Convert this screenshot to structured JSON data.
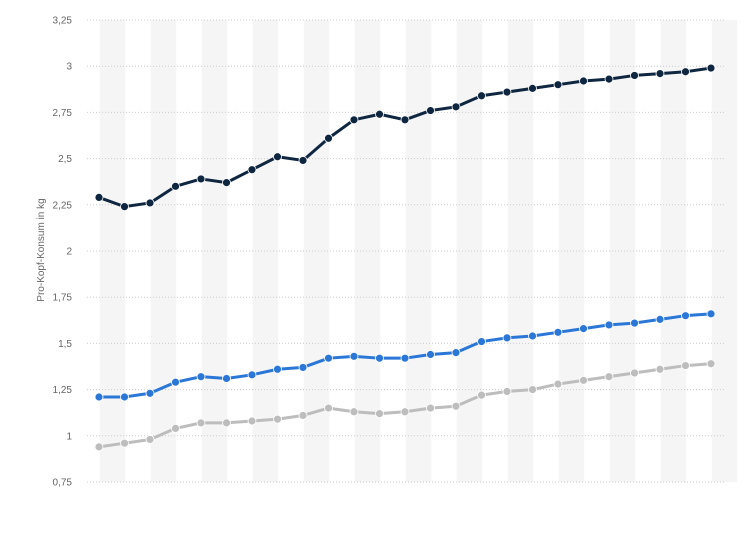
{
  "chart_data": {
    "type": "line",
    "ylabel": "Pro-Kopf-Konsum in kg",
    "ylim": [
      0.75,
      3.25
    ],
    "y_ticks": [
      "0,75",
      "1",
      "1,25",
      "1,5",
      "1,75",
      "2",
      "2,25",
      "2,5",
      "2,75",
      "3",
      "3,25"
    ],
    "y_tick_values": [
      0.75,
      1.0,
      1.25,
      1.5,
      1.75,
      2.0,
      2.25,
      2.5,
      2.75,
      3.0,
      3.25
    ],
    "grid": true,
    "legend": "none",
    "x_count": 25,
    "series": [
      {
        "color": "#0f2641",
        "values": [
          2.29,
          2.24,
          2.26,
          2.35,
          2.39,
          2.37,
          2.44,
          2.51,
          2.49,
          2.61,
          2.71,
          2.74,
          2.71,
          2.76,
          2.78,
          2.84,
          2.86,
          2.88,
          2.9,
          2.92,
          2.93,
          2.95,
          2.96,
          2.97,
          2.99
        ]
      },
      {
        "color": "#2a77d8",
        "values": [
          1.21,
          1.21,
          1.23,
          1.29,
          1.32,
          1.31,
          1.33,
          1.36,
          1.37,
          1.42,
          1.43,
          1.42,
          1.42,
          1.44,
          1.45,
          1.51,
          1.53,
          1.54,
          1.56,
          1.58,
          1.6,
          1.61,
          1.63,
          1.65,
          1.66
        ]
      },
      {
        "color": "#bdbdbd",
        "values": [
          0.94,
          0.96,
          0.98,
          1.04,
          1.07,
          1.07,
          1.08,
          1.09,
          1.11,
          1.15,
          1.13,
          1.12,
          1.13,
          1.15,
          1.16,
          1.22,
          1.24,
          1.25,
          1.28,
          1.3,
          1.32,
          1.34,
          1.36,
          1.38,
          1.39
        ]
      }
    ]
  }
}
